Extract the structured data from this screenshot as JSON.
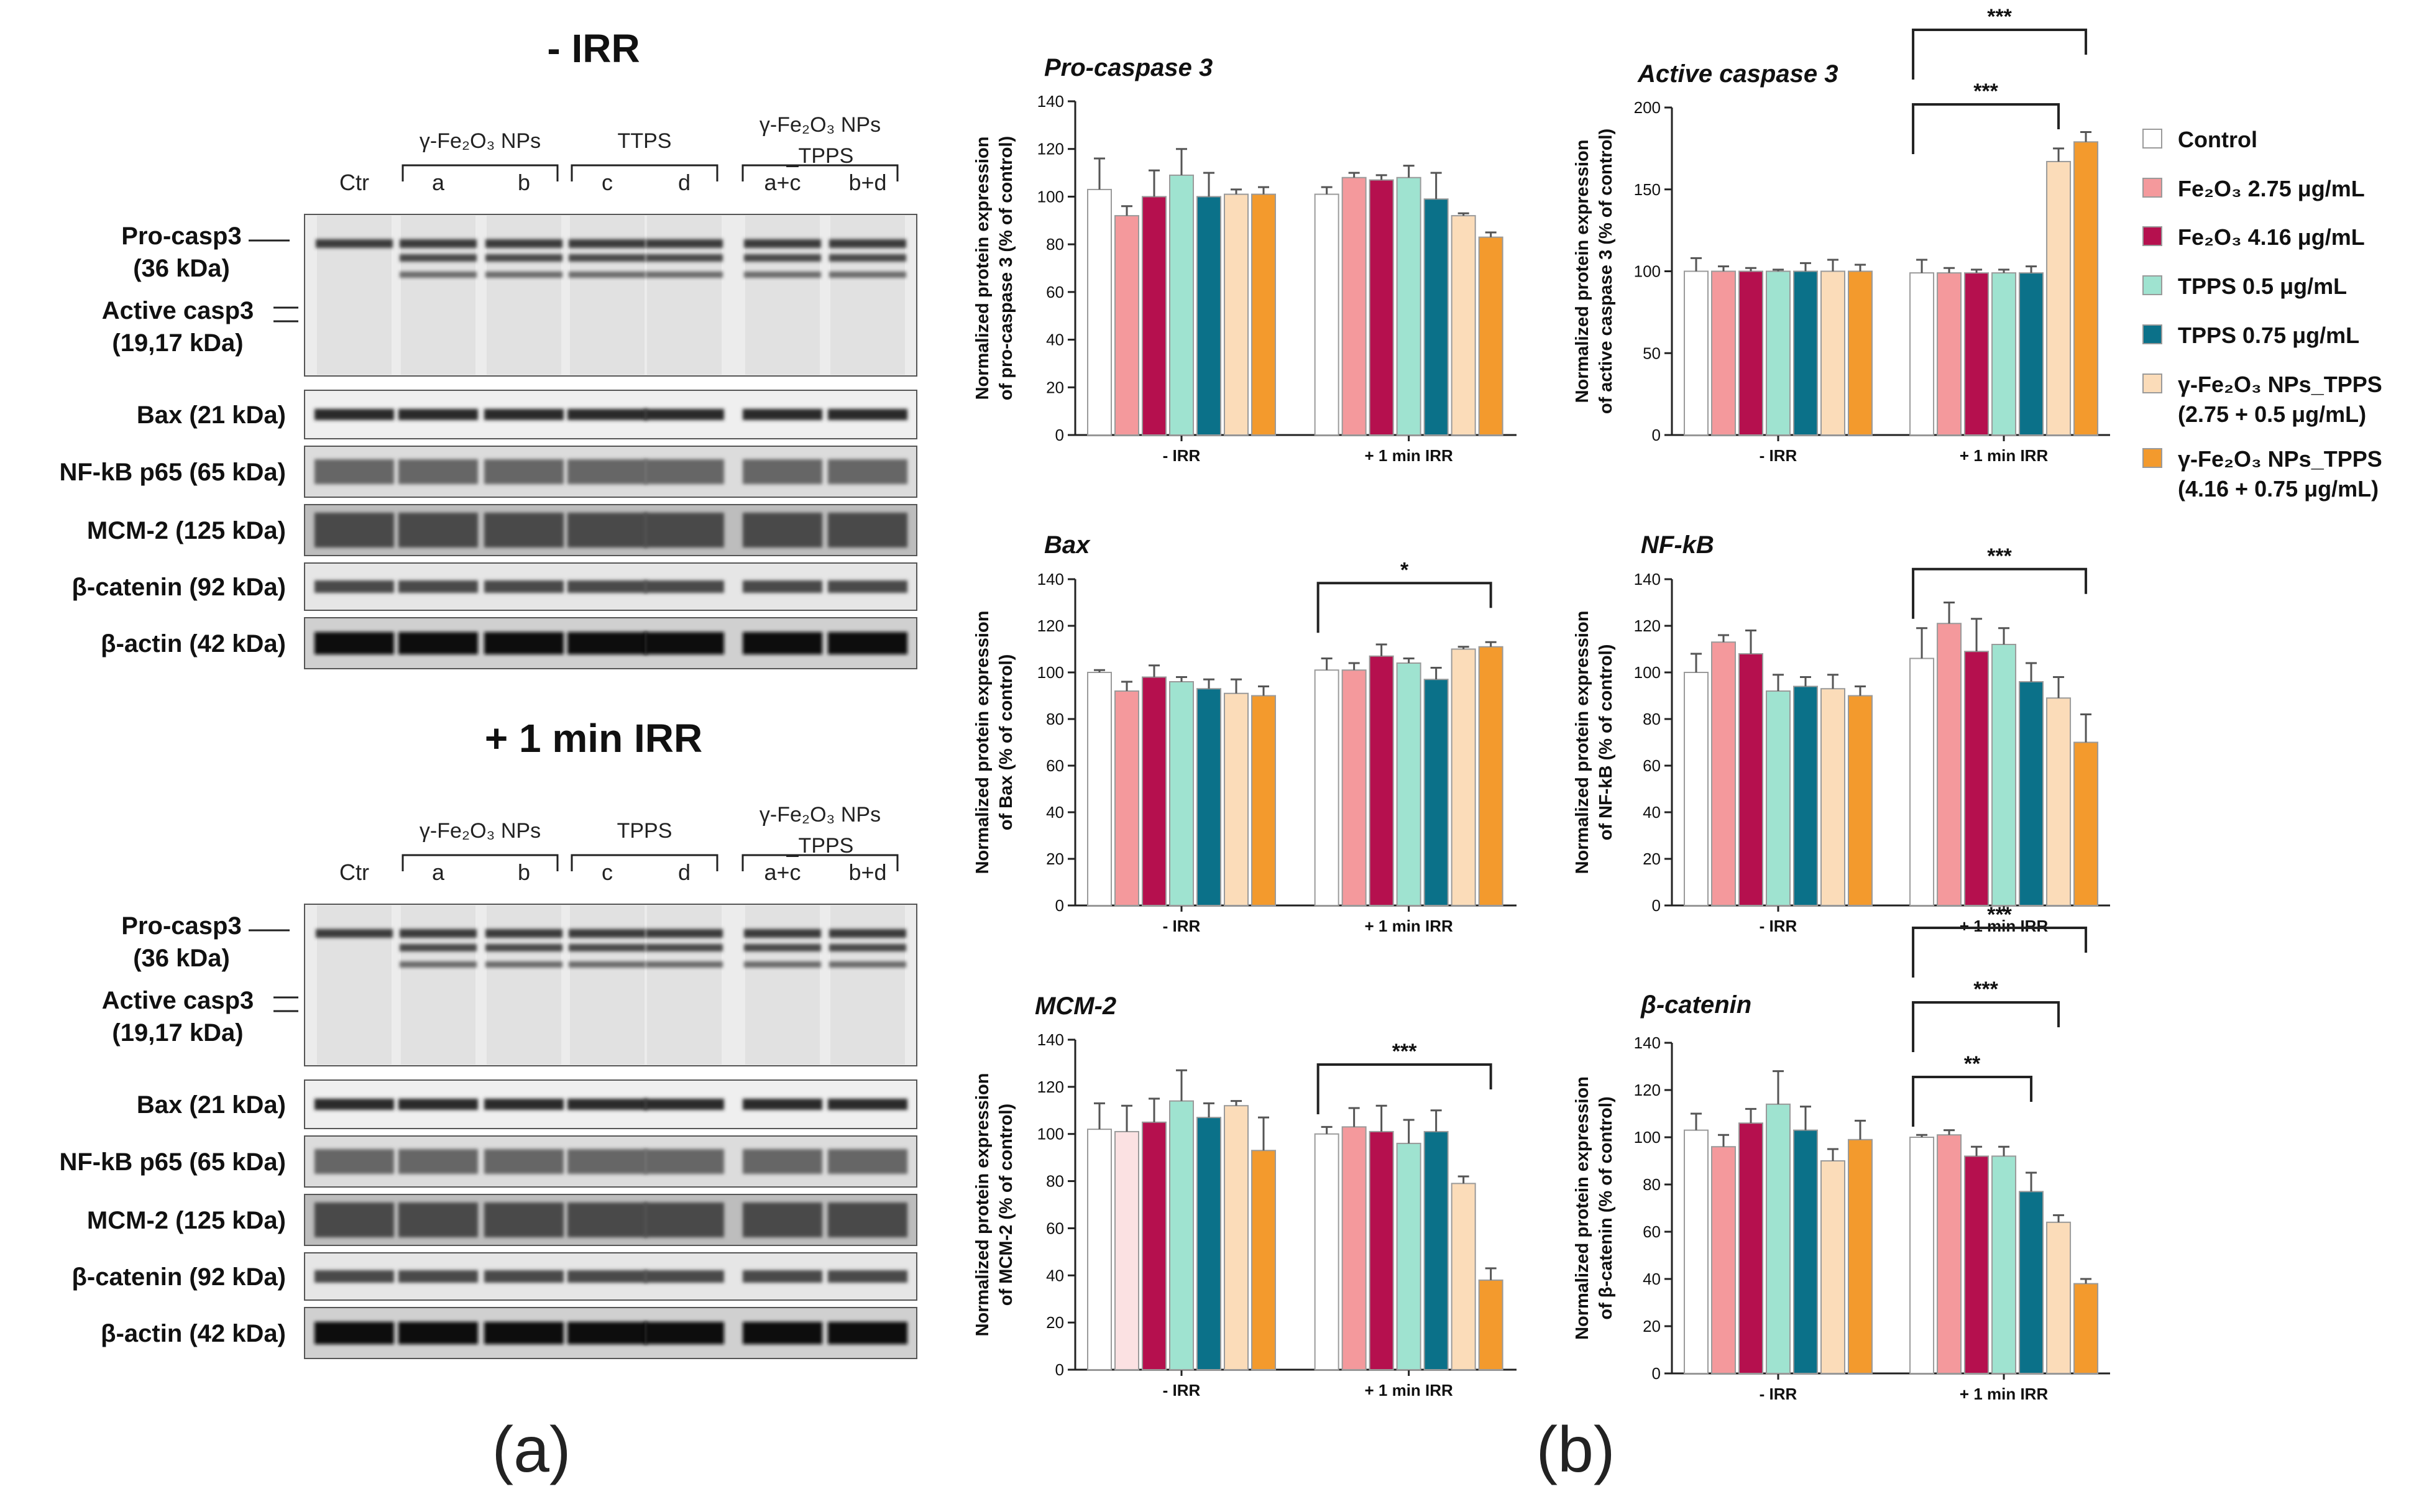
{
  "panel_labels": {
    "a": "(a)",
    "b": "(b)"
  },
  "blots": {
    "lane_headers": [
      "Ctr",
      "a",
      "b",
      "c",
      "d",
      "a+c",
      "b+d"
    ],
    "rows": [
      "Pro-casp3\n(36 kDa)",
      "Active casp3\n(19,17 kDa)",
      "Bax (21 kDa)",
      "NF-kB p65 (65 kDa)",
      "MCM-2 (125 kDa)",
      "β-catenin (92 kDa)",
      "β-actin (42 kDa)"
    ],
    "sets": [
      {
        "title": "- IRR",
        "groups": [
          {
            "label": "γ-Fe₂O₃ NPs"
          },
          {
            "label": "TTPS"
          },
          {
            "label": "γ-Fe₂O₃ NPs\n_TPPS"
          }
        ]
      },
      {
        "title": "+ 1 min IRR",
        "groups": [
          {
            "label": "γ-Fe₂O₃ NPs"
          },
          {
            "label": "TPPS"
          },
          {
            "label": "γ-Fe₂O₃ NPs\n_TPPS"
          }
        ]
      }
    ]
  },
  "legend": [
    {
      "label": "Control",
      "color": "#ffffff"
    },
    {
      "label": "Fe₂O₃ 2.75 μg/mL",
      "color": "#f4999c"
    },
    {
      "label": "Fe₂O₃ 4.16 μg/mL",
      "color": "#b5104e"
    },
    {
      "label": "TPPS 0.5 μg/mL",
      "color": "#9fe3d0"
    },
    {
      "label": "TPPS 0.75 μg/mL",
      "color": "#0b7189"
    },
    {
      "label": "γ-Fe₂O₃ NPs_TPPS\n(2.75 + 0.5 μg/mL)",
      "color": "#fbdcb9"
    },
    {
      "label": "γ-Fe₂O₃ NPs_TPPS\n(4.16 + 0.75 μg/mL)",
      "color": "#f39a2d"
    }
  ],
  "chart_data": [
    {
      "type": "bar",
      "title": "Pro-caspase 3",
      "ylabel": "Normalized protein expression\nof pro-caspase 3 (% of control)",
      "categories": [
        "- IRR",
        "+ 1 min IRR"
      ],
      "ylim": [
        0,
        140
      ],
      "yticks": [
        0,
        20,
        40,
        60,
        80,
        100,
        120,
        140
      ],
      "neg_colors": [
        "#ffffff",
        "#f4999c",
        "#b5104e",
        "#9fe3d0",
        "#0b7189",
        "#fbdcb9",
        "#f39a2d"
      ],
      "series": [
        {
          "name": "Control",
          "values": [
            103,
            101
          ],
          "errors": [
            13,
            3
          ]
        },
        {
          "name": "Fe₂O₃ 2.75 μg/mL",
          "values": [
            92,
            108
          ],
          "errors": [
            4,
            2
          ]
        },
        {
          "name": "Fe₂O₃ 4.16 μg/mL",
          "values": [
            100,
            107
          ],
          "errors": [
            11,
            2
          ]
        },
        {
          "name": "TPPS 0.5 μg/mL",
          "values": [
            109,
            108
          ],
          "errors": [
            11,
            5
          ]
        },
        {
          "name": "TPPS 0.75 μg/mL",
          "values": [
            100,
            99
          ],
          "errors": [
            10,
            11
          ]
        },
        {
          "name": "γ-Fe₂O₃ NPs_TPPS (2.75 + 0.5 μg/mL)",
          "values": [
            101,
            92
          ],
          "errors": [
            2,
            1
          ]
        },
        {
          "name": "γ-Fe₂O₃ NPs_TPPS (4.16 + 0.75 μg/mL)",
          "values": [
            101,
            83
          ],
          "errors": [
            3,
            2
          ]
        }
      ],
      "significance": []
    },
    {
      "type": "bar",
      "title": "Active caspase 3",
      "ylabel": "Normalized protein expression\nof active caspase 3 (% of control)",
      "categories": [
        "- IRR",
        "+ 1 min IRR"
      ],
      "ylim": [
        0,
        200
      ],
      "yticks": [
        0,
        50,
        100,
        150,
        200
      ],
      "neg_colors": [
        "#ffffff",
        "#f4999c",
        "#b5104e",
        "#9fe3d0",
        "#0b7189",
        "#fbdcb9",
        "#f39a2d"
      ],
      "series": [
        {
          "name": "Control",
          "values": [
            100,
            99
          ],
          "errors": [
            8,
            8
          ]
        },
        {
          "name": "Fe₂O₃ 2.75 μg/mL",
          "values": [
            100,
            99
          ],
          "errors": [
            3,
            3
          ]
        },
        {
          "name": "Fe₂O₃ 4.16 μg/mL",
          "values": [
            100,
            99
          ],
          "errors": [
            2,
            2
          ]
        },
        {
          "name": "TPPS 0.5 μg/mL",
          "values": [
            100,
            99
          ],
          "errors": [
            1,
            2
          ]
        },
        {
          "name": "TPPS 0.75 μg/mL",
          "values": [
            100,
            99
          ],
          "errors": [
            5,
            4
          ]
        },
        {
          "name": "γ-Fe₂O₃ NPs_TPPS (2.75 + 0.5 μg/mL)",
          "values": [
            100,
            167
          ],
          "errors": [
            7,
            8
          ]
        },
        {
          "name": "γ-Fe₂O₃ NPs_TPPS (4.16 + 0.75 μg/mL)",
          "values": [
            100,
            179
          ],
          "errors": [
            4,
            6
          ]
        }
      ],
      "significance": [
        {
          "label": "***",
          "to_series": 5
        },
        {
          "label": "***",
          "to_series": 6
        }
      ]
    },
    {
      "type": "bar",
      "title": "Bax",
      "ylabel": "Normalized protein expression\nof Bax (% of control)",
      "categories": [
        "- IRR",
        "+ 1 min IRR"
      ],
      "ylim": [
        0,
        140
      ],
      "yticks": [
        0,
        20,
        40,
        60,
        80,
        100,
        120,
        140
      ],
      "neg_colors": [
        "#ffffff",
        "#f4999c",
        "#b5104e",
        "#9fe3d0",
        "#0b7189",
        "#fbdcb9",
        "#f39a2d"
      ],
      "series": [
        {
          "name": "Control",
          "values": [
            100,
            101
          ],
          "errors": [
            1,
            5
          ]
        },
        {
          "name": "Fe₂O₃ 2.75 μg/mL",
          "values": [
            92,
            101
          ],
          "errors": [
            4,
            3
          ]
        },
        {
          "name": "Fe₂O₃ 4.16 μg/mL",
          "values": [
            98,
            107
          ],
          "errors": [
            5,
            5
          ]
        },
        {
          "name": "TPPS 0.5 μg/mL",
          "values": [
            96,
            104
          ],
          "errors": [
            2,
            2
          ]
        },
        {
          "name": "TPPS 0.75 μg/mL",
          "values": [
            93,
            97
          ],
          "errors": [
            4,
            5
          ]
        },
        {
          "name": "γ-Fe₂O₃ NPs_TPPS (2.75 + 0.5 μg/mL)",
          "values": [
            91,
            110
          ],
          "errors": [
            6,
            1
          ]
        },
        {
          "name": "γ-Fe₂O₃ NPs_TPPS (4.16 + 0.75 μg/mL)",
          "values": [
            90,
            111
          ],
          "errors": [
            4,
            2
          ]
        }
      ],
      "significance": [
        {
          "label": "*",
          "to_series": 6
        }
      ]
    },
    {
      "type": "bar",
      "title": "NF-kB",
      "ylabel": "Normalized protein expression\nof NF-kB (% of control)",
      "categories": [
        "- IRR",
        "+ 1 min IRR"
      ],
      "ylim": [
        0,
        140
      ],
      "yticks": [
        0,
        20,
        40,
        60,
        80,
        100,
        120,
        140
      ],
      "neg_colors": [
        "#ffffff",
        "#f4999c",
        "#b5104e",
        "#9fe3d0",
        "#0b7189",
        "#fbdcb9",
        "#f39a2d"
      ],
      "series": [
        {
          "name": "Control",
          "values": [
            100,
            106
          ],
          "errors": [
            8,
            13
          ]
        },
        {
          "name": "Fe₂O₃ 2.75 μg/mL",
          "values": [
            113,
            121
          ],
          "errors": [
            3,
            9
          ]
        },
        {
          "name": "Fe₂O₃ 4.16 μg/mL",
          "values": [
            108,
            109
          ],
          "errors": [
            10,
            14
          ]
        },
        {
          "name": "TPPS 0.5 μg/mL",
          "values": [
            92,
            112
          ],
          "errors": [
            7,
            7
          ]
        },
        {
          "name": "TPPS 0.75 μg/mL",
          "values": [
            94,
            96
          ],
          "errors": [
            4,
            8
          ]
        },
        {
          "name": "γ-Fe₂O₃ NPs_TPPS (2.75 + 0.5 μg/mL)",
          "values": [
            93,
            89
          ],
          "errors": [
            6,
            9
          ]
        },
        {
          "name": "γ-Fe₂O₃ NPs_TPPS (4.16 + 0.75 μg/mL)",
          "values": [
            90,
            70
          ],
          "errors": [
            4,
            12
          ]
        }
      ],
      "significance": [
        {
          "label": "***",
          "to_series": 6
        }
      ]
    },
    {
      "type": "bar",
      "title": "MCM-2",
      "ylabel": "Normalized protein expression\nof MCM-2 (% of control)",
      "categories": [
        "- IRR",
        "+ 1 min IRR"
      ],
      "ylim": [
        0,
        140
      ],
      "yticks": [
        0,
        20,
        40,
        60,
        80,
        100,
        120,
        140
      ],
      "neg_colors": [
        "#ffffff",
        "#fbe1e2",
        "#b5104e",
        "#9fe3d0",
        "#0b7189",
        "#fbdcb9",
        "#f39a2d"
      ],
      "series": [
        {
          "name": "Control",
          "values": [
            102,
            100
          ],
          "errors": [
            11,
            3
          ]
        },
        {
          "name": "Fe₂O₃ 2.75 μg/mL",
          "values": [
            101,
            103
          ],
          "errors": [
            11,
            8
          ]
        },
        {
          "name": "Fe₂O₃ 4.16 μg/mL",
          "values": [
            105,
            101
          ],
          "errors": [
            10,
            11
          ]
        },
        {
          "name": "TPPS 0.5 μg/mL",
          "values": [
            114,
            96
          ],
          "errors": [
            13,
            10
          ]
        },
        {
          "name": "TPPS 0.75 μg/mL",
          "values": [
            107,
            101
          ],
          "errors": [
            6,
            9
          ]
        },
        {
          "name": "γ-Fe₂O₃ NPs_TPPS (2.75 + 0.5 μg/mL)",
          "values": [
            112,
            79
          ],
          "errors": [
            2,
            3
          ]
        },
        {
          "name": "γ-Fe₂O₃ NPs_TPPS (4.16 + 0.75 μg/mL)",
          "values": [
            93,
            38
          ],
          "errors": [
            14,
            5
          ]
        }
      ],
      "significance": [
        {
          "label": "***",
          "to_series": 6
        }
      ]
    },
    {
      "type": "bar",
      "title": "β-catenin",
      "ylabel": "Normalized protein expression\nof β-catenin (% of control)",
      "categories": [
        "- IRR",
        "+ 1 min IRR"
      ],
      "ylim": [
        0,
        140
      ],
      "yticks": [
        0,
        20,
        40,
        60,
        80,
        100,
        120,
        140
      ],
      "neg_colors": [
        "#ffffff",
        "#f4999c",
        "#b5104e",
        "#9fe3d0",
        "#0b7189",
        "#fbdcb9",
        "#f39a2d"
      ],
      "series": [
        {
          "name": "Control",
          "values": [
            103,
            100
          ],
          "errors": [
            7,
            1
          ]
        },
        {
          "name": "Fe₂O₃ 2.75 μg/mL",
          "values": [
            96,
            101
          ],
          "errors": [
            5,
            2
          ]
        },
        {
          "name": "Fe₂O₃ 4.16 μg/mL",
          "values": [
            106,
            92
          ],
          "errors": [
            6,
            4
          ]
        },
        {
          "name": "TPPS 0.5 μg/mL",
          "values": [
            114,
            92
          ],
          "errors": [
            14,
            4
          ]
        },
        {
          "name": "TPPS 0.75 μg/mL",
          "values": [
            103,
            77
          ],
          "errors": [
            10,
            8
          ]
        },
        {
          "name": "γ-Fe₂O₃ NPs_TPPS (2.75 + 0.5 μg/mL)",
          "values": [
            90,
            64
          ],
          "errors": [
            5,
            3
          ]
        },
        {
          "name": "γ-Fe₂O₃ NPs_TPPS (4.16 + 0.75 μg/mL)",
          "values": [
            99,
            38
          ],
          "errors": [
            8,
            2
          ]
        }
      ],
      "significance": [
        {
          "label": "**",
          "to_series": 4
        },
        {
          "label": "***",
          "to_series": 5
        },
        {
          "label": "***",
          "to_series": 6
        }
      ]
    }
  ]
}
